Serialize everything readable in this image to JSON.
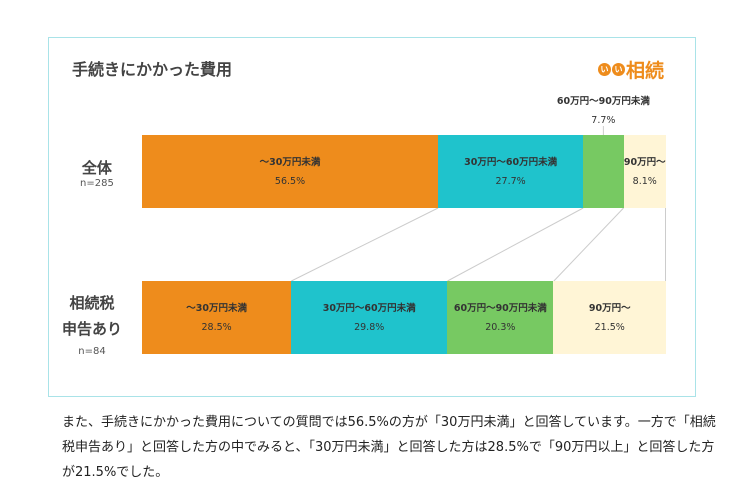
{
  "chart_data": {
    "type": "bar",
    "orientation": "horizontal",
    "stacked": true,
    "normalized": true,
    "title": "手続きにかかった費用",
    "logo": "いい相続",
    "categories": [
      "〜30万円未満",
      "30万円〜60万円未満",
      "60万円〜90万円未満",
      "90万円〜"
    ],
    "colors": [
      "#EE8C1C",
      "#1FC3CC",
      "#77C962",
      "#FFF5D6"
    ],
    "rows": [
      {
        "label": "全体",
        "n": "n=285",
        "values": [
          56.5,
          27.7,
          7.7,
          8.1
        ],
        "display": [
          "56.5%",
          "27.7%",
          "7.7%",
          "8.1%"
        ]
      },
      {
        "label": "相続税申告あり",
        "label_lines": [
          "相続税",
          "申告あり"
        ],
        "n": "n=84",
        "values": [
          28.5,
          29.8,
          20.3,
          21.5
        ],
        "display": [
          "28.5%",
          "29.8%",
          "20.3%",
          "21.5%"
        ]
      }
    ]
  },
  "caption": "また、手続きにかかった費用についての質問では56.5%の方が「30万円未満」と回答しています。一方で「相続税申告あり」と回答した方の中でみると、「30万円未満」と回答した方は28.5%で「90万円以上」と回答した方が21.5%でした。"
}
